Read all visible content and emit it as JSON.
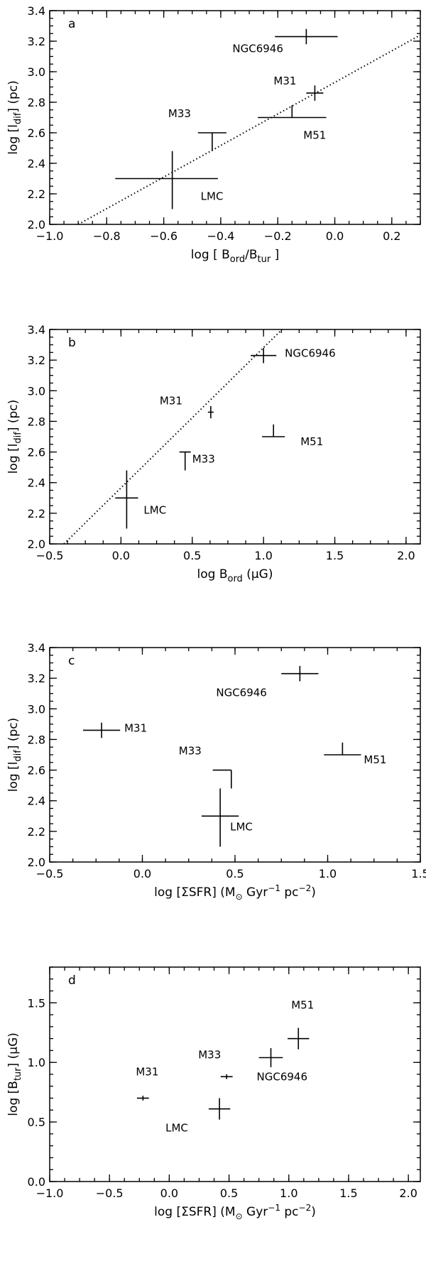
{
  "chart_data": [
    {
      "panel": "a",
      "type": "scatter",
      "xlabel": "log [ B_ord/B_tur ]",
      "ylabel": "log [l_dif] (pc)",
      "xlim": [
        -1.0,
        0.3
      ],
      "ylim": [
        2.0,
        3.4
      ],
      "xticks": [
        -1.0,
        -0.8,
        -0.6,
        -0.4,
        -0.2,
        0.0,
        0.2
      ],
      "xtick_labels": [
        "−1.0",
        "−0.8",
        "−0.6",
        "−0.4",
        "−0.2",
        "0.0",
        "0.2"
      ],
      "yticks": [
        2.0,
        2.2,
        2.4,
        2.6,
        2.8,
        3.0,
        3.2,
        3.4
      ],
      "ytick_labels": [
        "2.0",
        "2.2",
        "2.4",
        "2.6",
        "2.8",
        "3.0",
        "3.2",
        "3.4"
      ],
      "points": [
        {
          "name": "NGC6946",
          "x": -0.1,
          "y": 3.23,
          "xerr": [
            0.11,
            0.11
          ],
          "yerr": [
            0.05,
            0.05
          ]
        },
        {
          "name": "M31",
          "x": -0.07,
          "y": 2.86,
          "xerr": [
            0.03,
            0.03
          ],
          "yerr": [
            0.05,
            0.05
          ]
        },
        {
          "name": "M51",
          "x": -0.15,
          "y": 2.7,
          "xerr": [
            0.12,
            0.12
          ],
          "yerr": [
            0.0,
            0.08
          ]
        },
        {
          "name": "M33",
          "x": -0.43,
          "y": 2.6,
          "xerr": [
            0.05,
            0.05
          ],
          "yerr": [
            0.12,
            0.0
          ]
        },
        {
          "name": "LMC",
          "x": -0.57,
          "y": 2.3,
          "xerr": [
            0.2,
            0.16
          ],
          "yerr": [
            0.2,
            0.18
          ]
        }
      ],
      "fit_line": [
        [
          -0.9,
          2.0
        ],
        [
          0.3,
          3.24
        ]
      ]
    },
    {
      "panel": "b",
      "type": "scatter",
      "xlabel": "log B_ord (μG)",
      "ylabel": "log [l_dif] (pc)",
      "xlim": [
        -0.5,
        2.1
      ],
      "ylim": [
        2.0,
        3.4
      ],
      "xticks": [
        -0.5,
        0.0,
        0.5,
        1.0,
        1.5,
        2.0
      ],
      "xtick_labels": [
        "−0.5",
        "0.0",
        "0.5",
        "1.0",
        "1.5",
        "2.0"
      ],
      "yticks": [
        2.0,
        2.2,
        2.4,
        2.6,
        2.8,
        3.0,
        3.2,
        3.4
      ],
      "ytick_labels": [
        "2.0",
        "2.2",
        "2.4",
        "2.6",
        "2.8",
        "3.0",
        "3.2",
        "3.4"
      ],
      "points": [
        {
          "name": "NGC6946",
          "x": 1.0,
          "y": 3.23,
          "xerr": [
            0.09,
            0.09
          ],
          "yerr": [
            0.05,
            0.05
          ]
        },
        {
          "name": "M31",
          "x": 0.63,
          "y": 2.86,
          "xerr": [
            0.02,
            0.02
          ],
          "yerr": [
            0.04,
            0.04
          ]
        },
        {
          "name": "M51",
          "x": 1.07,
          "y": 2.7,
          "xerr": [
            0.08,
            0.08
          ],
          "yerr": [
            0.0,
            0.08
          ]
        },
        {
          "name": "M33",
          "x": 0.45,
          "y": 2.6,
          "xerr": [
            0.0,
            0.0
          ],
          "yerr": [
            0.12,
            0.0
          ]
        },
        {
          "name": "LMC",
          "x": 0.04,
          "y": 2.3,
          "xerr": [
            0.08,
            0.08
          ],
          "yerr": [
            0.2,
            0.18
          ]
        }
      ],
      "fit_line": [
        [
          -0.4,
          2.0
        ],
        [
          1.13,
          3.4
        ]
      ]
    },
    {
      "panel": "c",
      "type": "scatter",
      "xlabel": "log [ΣSFR] (M⊙ Gyr⁻¹ pc⁻²)",
      "ylabel": "log [l_dif] (pc)",
      "xlim": [
        -0.5,
        1.5
      ],
      "ylim": [
        2.0,
        3.4
      ],
      "xticks": [
        -0.5,
        0.0,
        0.5,
        1.0,
        1.5
      ],
      "xtick_labels": [
        "−0.5",
        "0.0",
        "0.5",
        "1.0",
        "1.5"
      ],
      "yticks": [
        2.0,
        2.2,
        2.4,
        2.6,
        2.8,
        3.0,
        3.2,
        3.4
      ],
      "ytick_labels": [
        "2.0",
        "2.2",
        "2.4",
        "2.6",
        "2.8",
        "3.0",
        "3.2",
        "3.4"
      ],
      "points": [
        {
          "name": "NGC6946",
          "x": 0.85,
          "y": 3.23,
          "xerr": [
            0.1,
            0.1
          ],
          "yerr": [
            0.05,
            0.05
          ]
        },
        {
          "name": "M31",
          "x": -0.22,
          "y": 2.86,
          "xerr": [
            0.1,
            0.1
          ],
          "yerr": [
            0.05,
            0.05
          ]
        },
        {
          "name": "M51",
          "x": 1.08,
          "y": 2.7,
          "xerr": [
            0.1,
            0.1
          ],
          "yerr": [
            0.0,
            0.08
          ]
        },
        {
          "name": "M33",
          "x": 0.48,
          "y": 2.6,
          "xerr": [
            0.1,
            0.0
          ],
          "yerr": [
            0.12,
            0.0
          ]
        },
        {
          "name": "LMC",
          "x": 0.42,
          "y": 2.3,
          "xerr": [
            0.1,
            0.1
          ],
          "yerr": [
            0.2,
            0.18
          ]
        }
      ]
    },
    {
      "panel": "d",
      "type": "scatter",
      "xlabel": "log [ΣSFR] (M⊙ Gyr⁻¹ pc⁻²)",
      "ylabel": "log [B_tur] (μG)",
      "xlim": [
        -1.0,
        2.1
      ],
      "ylim": [
        0.0,
        1.8
      ],
      "xticks": [
        -1.0,
        -0.5,
        0.0,
        0.5,
        1.0,
        1.5,
        2.0
      ],
      "xtick_labels": [
        "−1.0",
        "−0.5",
        "0.0",
        "0.5",
        "1.0",
        "1.5",
        "2.0"
      ],
      "yticks": [
        0.0,
        0.5,
        1.0,
        1.5
      ],
      "ytick_labels": [
        "0.0",
        "0.5",
        "1.0",
        "1.5"
      ],
      "points": [
        {
          "name": "M51",
          "x": 1.08,
          "y": 1.2,
          "xerr": [
            0.09,
            0.09
          ],
          "yerr": [
            0.09,
            0.09
          ]
        },
        {
          "name": "NGC6946",
          "x": 0.85,
          "y": 1.04,
          "xerr": [
            0.1,
            0.1
          ],
          "yerr": [
            0.08,
            0.08
          ]
        },
        {
          "name": "M33",
          "x": 0.48,
          "y": 0.88,
          "xerr": [
            0.05,
            0.05
          ],
          "yerr": [
            0.02,
            0.02
          ]
        },
        {
          "name": "M31",
          "x": -0.22,
          "y": 0.7,
          "xerr": [
            0.05,
            0.05
          ],
          "yerr": [
            0.02,
            0.02
          ]
        },
        {
          "name": "LMC",
          "x": 0.42,
          "y": 0.61,
          "xerr": [
            0.09,
            0.09
          ],
          "yerr": [
            0.09,
            0.09
          ]
        }
      ]
    }
  ],
  "panels": {
    "a": {
      "letter": "a",
      "ylabel": "log [l",
      "ylabel_sub": "dif",
      "ylabel_tail": "] (pc)",
      "xlabel_parts": [
        "log [ B",
        "ord",
        "/B",
        "tur",
        " ]"
      ]
    },
    "b": {
      "letter": "b",
      "ylabel": "log [l",
      "ylabel_sub": "dif",
      "ylabel_tail": "] (pc)",
      "xlabel_parts": [
        "log B",
        "ord",
        " (μG)"
      ]
    },
    "c": {
      "letter": "c",
      "ylabel": "log [l",
      "ylabel_sub": "dif",
      "ylabel_tail": "] (pc)",
      "xlabel_parts": [
        "log [ΣSFR] (M",
        "⊙",
        " Gyr",
        "−1",
        " pc",
        "−2",
        ")"
      ]
    },
    "d": {
      "letter": "d",
      "ylabel": "log [B",
      "ylabel_sub": "tur",
      "ylabel_tail": "] (μG)",
      "xlabel_parts": [
        "log [ΣSFR] (M",
        "⊙",
        " Gyr",
        "−1",
        " pc",
        "−2",
        ")"
      ]
    }
  }
}
